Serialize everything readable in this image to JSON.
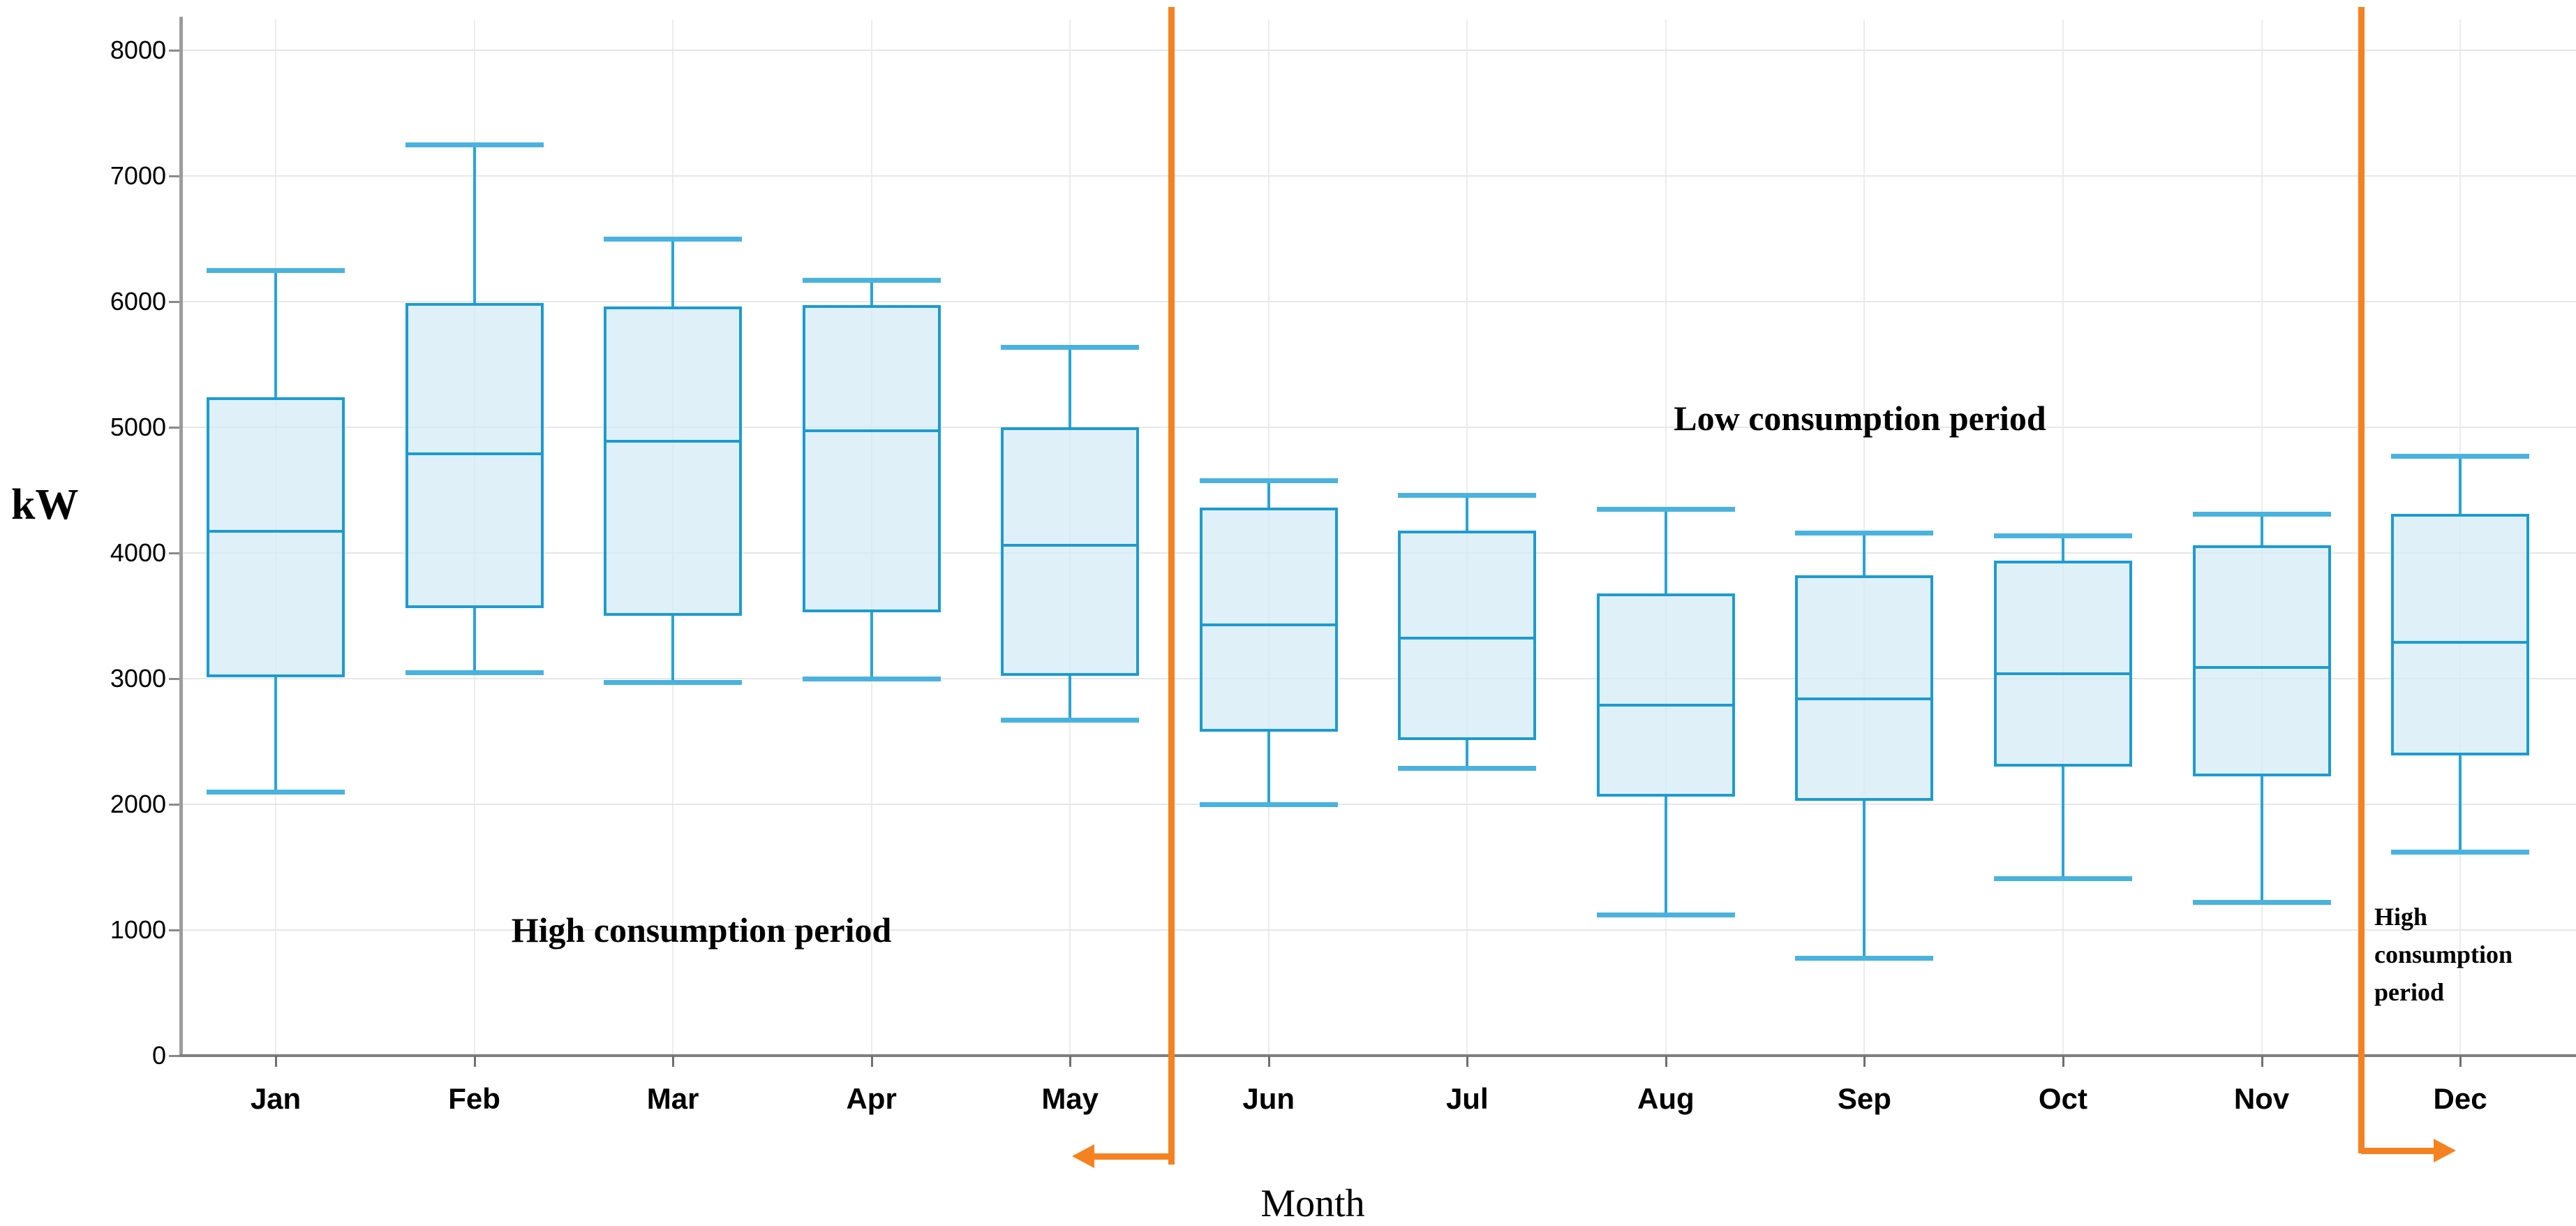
{
  "chart_data": {
    "type": "box",
    "title": "",
    "ylabel": "kW",
    "xlabel": "Month",
    "ylim": [
      0,
      8000
    ],
    "ytick_step": 1000,
    "y_tick_labels": [
      "0",
      "1000",
      "2000",
      "3000",
      "4000",
      "5000",
      "6000",
      "7000",
      "8000"
    ],
    "grid": true,
    "legend": "none",
    "categories": [
      "Jan",
      "Feb",
      "Mar",
      "Apr",
      "May",
      "Jun",
      "Jul",
      "Aug",
      "Sep",
      "Oct",
      "Nov",
      "Dec"
    ],
    "boxes": [
      {
        "cat": "Jan",
        "whisker_low": 2100,
        "q1": 3010,
        "median": 4170,
        "q3": 5240,
        "whisker_high": 6250
      },
      {
        "cat": "Feb",
        "whisker_low": 3050,
        "q1": 3560,
        "median": 4790,
        "q3": 5990,
        "whisker_high": 7250
      },
      {
        "cat": "Mar",
        "whisker_low": 2970,
        "q1": 3500,
        "median": 4890,
        "q3": 5960,
        "whisker_high": 6500
      },
      {
        "cat": "Apr",
        "whisker_low": 3000,
        "q1": 3530,
        "median": 4970,
        "q3": 5970,
        "whisker_high": 6170
      },
      {
        "cat": "May",
        "whisker_low": 2670,
        "q1": 3020,
        "median": 4060,
        "q3": 5000,
        "whisker_high": 5640
      },
      {
        "cat": "Jun",
        "whisker_low": 2000,
        "q1": 2580,
        "median": 3430,
        "q3": 4360,
        "whisker_high": 4580
      },
      {
        "cat": "Jul",
        "whisker_low": 2290,
        "q1": 2510,
        "median": 3320,
        "q3": 4180,
        "whisker_high": 4460
      },
      {
        "cat": "Aug",
        "whisker_low": 1120,
        "q1": 2060,
        "median": 2790,
        "q3": 3680,
        "whisker_high": 4350
      },
      {
        "cat": "Sep",
        "whisker_low": 780,
        "q1": 2030,
        "median": 2840,
        "q3": 3820,
        "whisker_high": 4160
      },
      {
        "cat": "Oct",
        "whisker_low": 1410,
        "q1": 2300,
        "median": 3040,
        "q3": 3940,
        "whisker_high": 4140
      },
      {
        "cat": "Nov",
        "whisker_low": 1220,
        "q1": 2220,
        "median": 3090,
        "q3": 4060,
        "whisker_high": 4310
      },
      {
        "cat": "Dec",
        "whisker_low": 1620,
        "q1": 2390,
        "median": 3290,
        "q3": 4310,
        "whisker_high": 4770
      }
    ],
    "annotations": {
      "high_left": "High consumption period",
      "low_mid": "Low consumption period",
      "high_right": "High consumption period"
    },
    "dividers": [
      {
        "position": "between May and Jun",
        "arrow_direction": "left"
      },
      {
        "position": "between Nov and Dec",
        "arrow_direction": "right"
      }
    ],
    "colors": {
      "box_stroke": "#1d9bd1",
      "box_fill": "rgba(214,235,247,0.75)",
      "whisker": "#2aa4d8",
      "cap": "#4ab2de",
      "median": "#1d9bd1",
      "divider_orange": "#f58220",
      "grid": "#e7e7e7",
      "axis": "#8a8a8a",
      "text": "#000000"
    }
  }
}
